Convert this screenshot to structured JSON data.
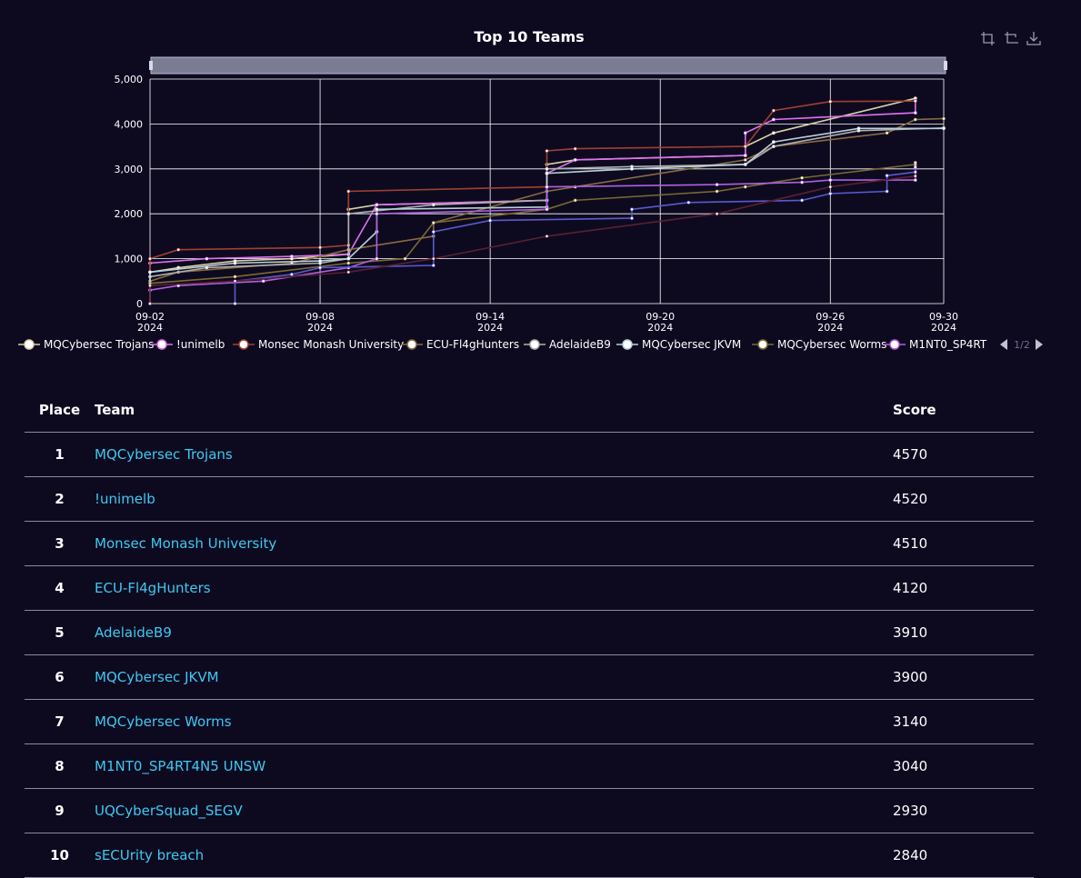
{
  "chart_data": {
    "type": "line",
    "title": "Top 10 Teams",
    "x_axis": {
      "type": "time",
      "ticks": [
        {
          "line1": "09-02",
          "line2": "2024"
        },
        {
          "line1": "09-08",
          "line2": "2024"
        },
        {
          "line1": "09-14",
          "line2": "2024"
        },
        {
          "line1": "09-20",
          "line2": "2024"
        },
        {
          "line1": "09-26",
          "line2": "2024"
        },
        {
          "line1": "09-30",
          "line2": "2024"
        }
      ],
      "range": [
        "2024-09-02",
        "2024-09-30"
      ]
    },
    "y_axis": {
      "ticks": [
        "0",
        "1,000",
        "2,000",
        "3,000",
        "4,000",
        "5,000"
      ],
      "range": [
        0,
        5000
      ]
    },
    "grid": true,
    "legend": {
      "placement": "bottom",
      "page": "1/2",
      "entries": [
        {
          "name": "MQCybersec Trojans",
          "color": "#d9d0a8"
        },
        {
          "name": "!unimelb",
          "color": "#e070f0"
        },
        {
          "name": "Monsec Monash University",
          "color": "#a04030"
        },
        {
          "name": "ECU-Fl4gHunters",
          "color": "#8a6a40"
        },
        {
          "name": "AdelaideB9",
          "color": "#b0b0b0"
        },
        {
          "name": "MQCybersec JKVM",
          "color": "#b9d0d8"
        },
        {
          "name": "MQCybersec Worms",
          "color": "#7a6a30"
        },
        {
          "name": "M1NT0_SP4RT",
          "color": "#b060e0"
        }
      ]
    },
    "series": [
      {
        "name": "MQCybersec Trojans",
        "color": "#d9d0a8",
        "points": [
          [
            "2024-09-02",
            0
          ],
          [
            "2024-09-02",
            700
          ],
          [
            "2024-09-03",
            800
          ],
          [
            "2024-09-05",
            950
          ],
          [
            "2024-09-07",
            1000
          ],
          [
            "2024-09-09",
            1100
          ],
          [
            "2024-09-09",
            2100
          ],
          [
            "2024-09-10",
            2200
          ],
          [
            "2024-09-16",
            2300
          ],
          [
            "2024-09-16",
            3100
          ],
          [
            "2024-09-17",
            3200
          ],
          [
            "2024-09-23",
            3300
          ],
          [
            "2024-09-23",
            3500
          ],
          [
            "2024-09-24",
            3800
          ],
          [
            "2024-09-29",
            4570
          ]
        ]
      },
      {
        "name": "!unimelb",
        "color": "#e070f0",
        "points": [
          [
            "2024-09-02",
            0
          ],
          [
            "2024-09-02",
            900
          ],
          [
            "2024-09-04",
            1000
          ],
          [
            "2024-09-07",
            1050
          ],
          [
            "2024-09-09",
            1100
          ],
          [
            "2024-09-10",
            2200
          ],
          [
            "2024-09-16",
            2300
          ],
          [
            "2024-09-16",
            2900
          ],
          [
            "2024-09-17",
            3200
          ],
          [
            "2024-09-23",
            3300
          ],
          [
            "2024-09-23",
            3800
          ],
          [
            "2024-09-24",
            4100
          ],
          [
            "2024-09-29",
            4250
          ],
          [
            "2024-09-29",
            4520
          ]
        ]
      },
      {
        "name": "Monsec Monash University",
        "color": "#a04030",
        "points": [
          [
            "2024-09-02",
            0
          ],
          [
            "2024-09-02",
            1000
          ],
          [
            "2024-09-03",
            1200
          ],
          [
            "2024-09-08",
            1250
          ],
          [
            "2024-09-09",
            1300
          ],
          [
            "2024-09-09",
            2500
          ],
          [
            "2024-09-16",
            2600
          ],
          [
            "2024-09-16",
            3400
          ],
          [
            "2024-09-17",
            3450
          ],
          [
            "2024-09-23",
            3500
          ],
          [
            "2024-09-24",
            4300
          ],
          [
            "2024-09-26",
            4500
          ],
          [
            "2024-09-29",
            4510
          ]
        ]
      },
      {
        "name": "ECU-Fl4gHunters",
        "color": "#8a6a40",
        "points": [
          [
            "2024-09-02",
            0
          ],
          [
            "2024-09-02",
            500
          ],
          [
            "2024-09-03",
            700
          ],
          [
            "2024-09-07",
            900
          ],
          [
            "2024-09-09",
            1200
          ],
          [
            "2024-09-12",
            1500
          ],
          [
            "2024-09-12",
            1800
          ],
          [
            "2024-09-16",
            2500
          ],
          [
            "2024-09-17",
            2600
          ],
          [
            "2024-09-23",
            3200
          ],
          [
            "2024-09-24",
            3500
          ],
          [
            "2024-09-28",
            3800
          ],
          [
            "2024-09-29",
            4100
          ],
          [
            "2024-09-30",
            4120
          ]
        ]
      },
      {
        "name": "AdelaideB9",
        "color": "#b0b0b0",
        "points": [
          [
            "2024-09-02",
            0
          ],
          [
            "2024-09-02",
            600
          ],
          [
            "2024-09-04",
            800
          ],
          [
            "2024-09-08",
            900
          ],
          [
            "2024-09-09",
            1000
          ],
          [
            "2024-09-09",
            2000
          ],
          [
            "2024-09-12",
            2200
          ],
          [
            "2024-09-16",
            2300
          ],
          [
            "2024-09-16",
            3000
          ],
          [
            "2024-09-19",
            3050
          ],
          [
            "2024-09-23",
            3100
          ],
          [
            "2024-09-24",
            3500
          ],
          [
            "2024-09-27",
            3850
          ],
          [
            "2024-09-30",
            3910
          ]
        ]
      },
      {
        "name": "MQCybersec JKVM",
        "color": "#b9d0d8",
        "points": [
          [
            "2024-09-02",
            0
          ],
          [
            "2024-09-02",
            700
          ],
          [
            "2024-09-05",
            900
          ],
          [
            "2024-09-08",
            950
          ],
          [
            "2024-09-09",
            1000
          ],
          [
            "2024-09-10",
            1600
          ],
          [
            "2024-09-10",
            2100
          ],
          [
            "2024-09-16",
            2150
          ],
          [
            "2024-09-16",
            2900
          ],
          [
            "2024-09-19",
            3000
          ],
          [
            "2024-09-23",
            3100
          ],
          [
            "2024-09-24",
            3600
          ],
          [
            "2024-09-27",
            3900
          ],
          [
            "2024-09-30",
            3900
          ]
        ]
      },
      {
        "name": "MQCybersec Worms",
        "color": "#7a6a30",
        "points": [
          [
            "2024-09-02",
            0
          ],
          [
            "2024-09-02",
            450
          ],
          [
            "2024-09-05",
            600
          ],
          [
            "2024-09-09",
            900
          ],
          [
            "2024-09-11",
            1000
          ],
          [
            "2024-09-12",
            1800
          ],
          [
            "2024-09-16",
            2100
          ],
          [
            "2024-09-17",
            2300
          ],
          [
            "2024-09-22",
            2500
          ],
          [
            "2024-09-23",
            2600
          ],
          [
            "2024-09-25",
            2800
          ],
          [
            "2024-09-29",
            3100
          ],
          [
            "2024-09-29",
            3140
          ]
        ]
      },
      {
        "name": "M1NT0_SP4RT4N5 UNSW",
        "color": "#b060e0",
        "points": [
          [
            "2024-09-02",
            0
          ],
          [
            "2024-09-02",
            300
          ],
          [
            "2024-09-03",
            400
          ],
          [
            "2024-09-06",
            500
          ],
          [
            "2024-09-09",
            800
          ],
          [
            "2024-09-10",
            1000
          ],
          [
            "2024-09-10",
            2000
          ],
          [
            "2024-09-16",
            2100
          ],
          [
            "2024-09-16",
            2600
          ],
          [
            "2024-09-22",
            2650
          ],
          [
            "2024-09-25",
            2700
          ],
          [
            "2024-09-26",
            2750
          ],
          [
            "2024-09-29",
            2750
          ],
          [
            "2024-09-29",
            3040
          ]
        ]
      },
      {
        "name": "UQCyberSquad_SEGV",
        "color": "#5a5ad0",
        "points": [
          [
            "2024-09-05",
            0
          ],
          [
            "2024-09-05",
            500
          ],
          [
            "2024-09-07",
            650
          ],
          [
            "2024-09-08",
            800
          ],
          [
            "2024-09-12",
            850
          ],
          [
            "2024-09-12",
            1600
          ],
          [
            "2024-09-14",
            1850
          ],
          [
            "2024-09-19",
            1900
          ],
          [
            "2024-09-19",
            2100
          ],
          [
            "2024-09-21",
            2250
          ],
          [
            "2024-09-25",
            2300
          ],
          [
            "2024-09-26",
            2450
          ],
          [
            "2024-09-28",
            2500
          ],
          [
            "2024-09-28",
            2850
          ],
          [
            "2024-09-29",
            2930
          ]
        ]
      },
      {
        "name": "sECUrity breach",
        "color": "#5a2030",
        "points": [
          [
            "2024-09-02",
            0
          ],
          [
            "2024-09-02",
            400
          ],
          [
            "2024-09-05",
            500
          ],
          [
            "2024-09-09",
            700
          ],
          [
            "2024-09-12",
            1000
          ],
          [
            "2024-09-16",
            1500
          ],
          [
            "2024-09-22",
            2000
          ],
          [
            "2024-09-26",
            2600
          ],
          [
            "2024-09-29",
            2840
          ]
        ]
      }
    ]
  },
  "toolbox": {
    "icons": [
      "zoom-icon",
      "zoom-reset-icon",
      "download-icon"
    ]
  },
  "table": {
    "headers": {
      "place": "Place",
      "team": "Team",
      "score": "Score"
    },
    "rows": [
      {
        "place": "1",
        "team": "MQCybersec Trojans",
        "score": "4570"
      },
      {
        "place": "2",
        "team": "!unimelb",
        "score": "4520"
      },
      {
        "place": "3",
        "team": "Monsec Monash University",
        "score": "4510"
      },
      {
        "place": "4",
        "team": "ECU-Fl4gHunters",
        "score": "4120"
      },
      {
        "place": "5",
        "team": "AdelaideB9",
        "score": "3910"
      },
      {
        "place": "6",
        "team": "MQCybersec JKVM",
        "score": "3900"
      },
      {
        "place": "7",
        "team": "MQCybersec Worms",
        "score": "3140"
      },
      {
        "place": "8",
        "team": "M1NT0_SP4RT4N5 UNSW",
        "score": "3040"
      },
      {
        "place": "9",
        "team": "UQCyberSquad_SEGV",
        "score": "2930"
      },
      {
        "place": "10",
        "team": "sECUrity breach",
        "score": "2840"
      }
    ]
  }
}
